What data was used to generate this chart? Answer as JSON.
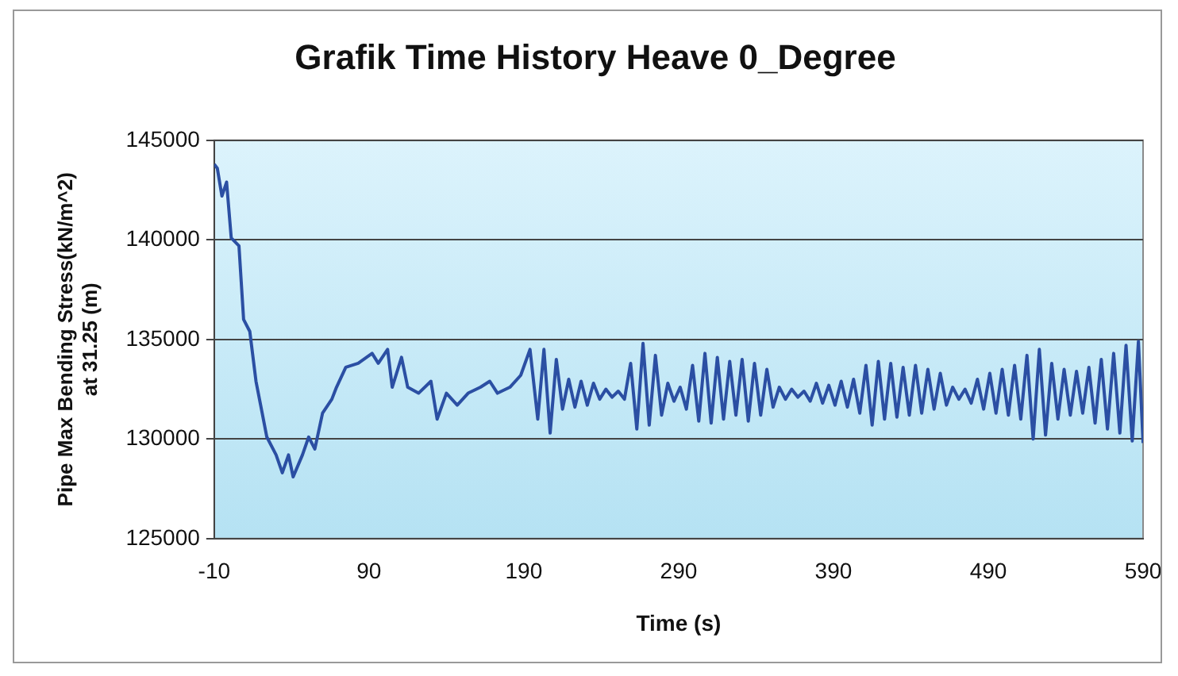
{
  "chart_data": {
    "type": "line",
    "title": "Grafik Time History Heave 0_Degree",
    "xlabel": "Time (s)",
    "ylabel": "Pipe Max Bending Stress(kN/m^2) at 31.25 (m)",
    "xlim": [
      -10,
      590
    ],
    "xticks": [
      -10,
      90,
      190,
      290,
      390,
      490,
      590
    ],
    "ylim": [
      125000,
      145000
    ],
    "yticks": [
      125000,
      130000,
      135000,
      140000,
      145000
    ],
    "grid": "y",
    "legend": false,
    "marker": "none",
    "line_style": "solid",
    "series": [
      {
        "color": "#2b4fa3",
        "x": [
          -10,
          -8,
          -5,
          -2,
          1,
          6,
          9,
          13,
          17,
          21,
          24,
          30,
          34,
          38,
          41,
          47,
          51,
          55,
          60,
          66,
          69,
          75,
          83,
          92,
          96,
          102,
          105,
          111,
          115,
          122,
          130,
          134,
          140,
          147,
          154,
          162,
          168,
          173,
          181,
          188,
          194,
          199,
          203,
          207,
          211,
          215,
          219,
          223,
          227,
          231,
          235,
          239,
          243,
          247,
          251,
          255,
          259,
          263,
          267,
          271,
          275,
          279,
          283,
          287,
          291,
          295,
          299,
          303,
          307,
          311,
          315,
          319,
          323,
          327,
          331,
          335,
          339,
          343,
          347,
          351,
          355,
          359,
          363,
          367,
          371,
          375,
          379,
          383,
          387,
          391,
          395,
          399,
          403,
          407,
          411,
          415,
          419,
          423,
          427,
          431,
          435,
          439,
          443,
          447,
          451,
          455,
          459,
          463,
          467,
          471,
          475,
          479,
          483,
          487,
          491,
          495,
          499,
          503,
          507,
          511,
          515,
          519,
          523,
          527,
          531,
          535,
          539,
          543,
          547,
          551,
          555,
          559,
          563,
          567,
          571,
          575,
          579,
          583,
          587,
          590
        ],
        "values": [
          143800,
          143600,
          142200,
          142900,
          140100,
          139700,
          136000,
          135400,
          132900,
          131300,
          130100,
          129200,
          128300,
          129200,
          128100,
          129200,
          130100,
          129500,
          131300,
          132000,
          132600,
          133600,
          133800,
          134300,
          133800,
          134500,
          132600,
          134100,
          132600,
          132300,
          132900,
          131000,
          132300,
          131700,
          132300,
          132600,
          132900,
          132300,
          132600,
          133200,
          134500,
          131000,
          134500,
          130300,
          134000,
          131500,
          133000,
          131600,
          132900,
          131700,
          132800,
          132000,
          132500,
          132100,
          132400,
          132000,
          133800,
          130500,
          134800,
          130700,
          134200,
          131200,
          132800,
          131900,
          132600,
          131500,
          133700,
          130900,
          134300,
          130800,
          134100,
          131000,
          133900,
          131200,
          134000,
          130900,
          133800,
          131200,
          133500,
          131600,
          132600,
          132000,
          132500,
          132100,
          132400,
          131900,
          132800,
          131800,
          132700,
          131700,
          132900,
          131600,
          133000,
          131300,
          133700,
          130700,
          133900,
          131000,
          133800,
          131100,
          133600,
          131200,
          133700,
          131300,
          133500,
          131500,
          133300,
          131700,
          132600,
          132000,
          132500,
          131800,
          133000,
          131500,
          133300,
          131300,
          133500,
          131200,
          133700,
          131000,
          134200,
          130000,
          134500,
          130200,
          133800,
          131000,
          133500,
          131200,
          133400,
          131300,
          133600,
          130800,
          134000,
          130500,
          134300,
          130300,
          134700,
          129900,
          134900,
          129800
        ]
      }
    ]
  }
}
